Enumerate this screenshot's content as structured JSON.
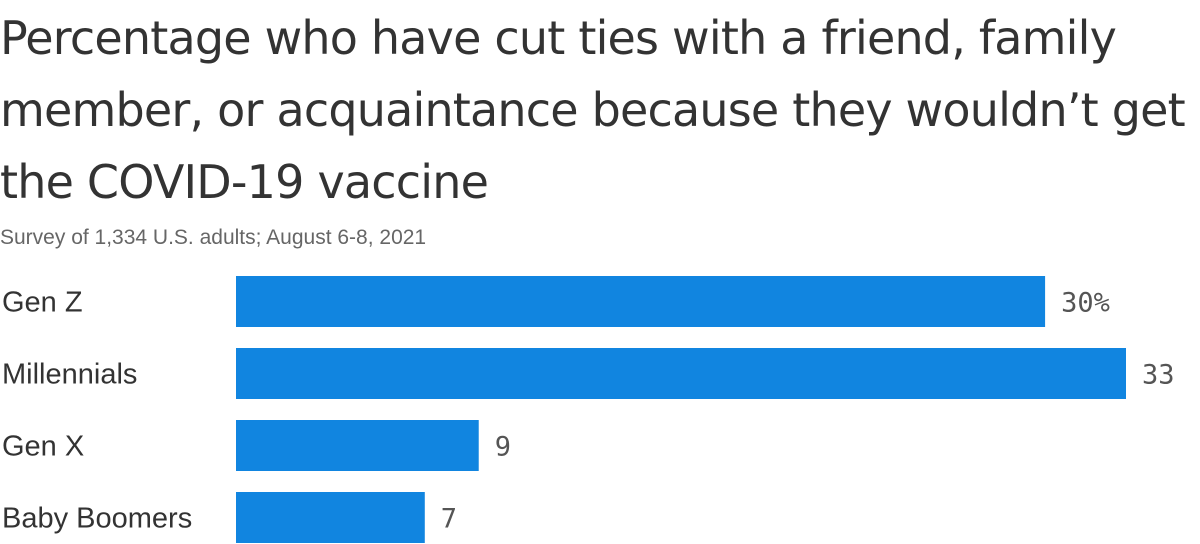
{
  "title": "Percentage who have cut ties with a friend, family member, or acquaintance because they wouldn’t get the COVID-19 vaccine",
  "subtitle": "Survey of 1,334 U.S. adults; August 6-8, 2021",
  "chart_data": {
    "type": "bar",
    "orientation": "horizontal",
    "title": "Percentage who have cut ties with a friend, family member, or acquaintance because they wouldn’t get the COVID-19 vaccine",
    "subtitle": "Survey of 1,334 U.S. adults; August 6-8, 2021",
    "categories": [
      "Gen Z",
      "Millennials",
      "Gen X",
      "Baby Boomers"
    ],
    "values": [
      30,
      33,
      9,
      7
    ],
    "value_labels": [
      "30%",
      "33",
      "9",
      "7"
    ],
    "xlim": [
      0,
      33
    ],
    "grid": false,
    "legend": "none",
    "bar_color": "#1185e0"
  }
}
